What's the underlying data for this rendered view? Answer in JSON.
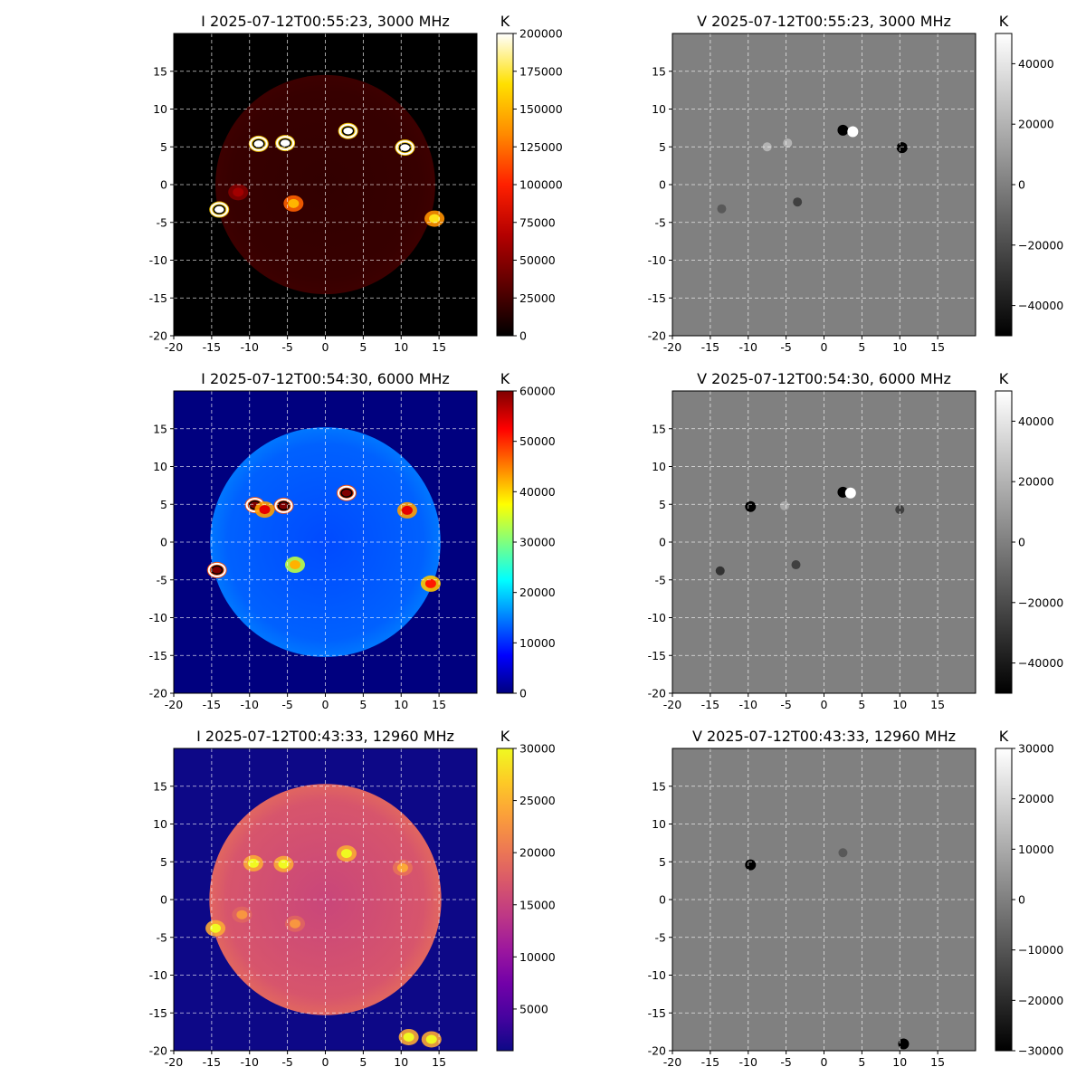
{
  "chart_data": [
    {
      "type": "heatmap",
      "stokes": "I",
      "title": "I 2025-07-12T00:55:23, 3000 MHz",
      "colormap": "hot",
      "xlim": [
        -20,
        20
      ],
      "ylim": [
        -20,
        20
      ],
      "xticks": [
        "-20",
        "-15",
        "-10",
        "-5",
        "0",
        "5",
        "10",
        "15"
      ],
      "yticks": [
        "-20",
        "-15",
        "-10",
        "-5",
        "0",
        "5",
        "10",
        "15"
      ],
      "grid": true,
      "colorbar": {
        "label": "K",
        "min": 0,
        "max": 200000,
        "ticks": [
          "0",
          "25000",
          "50000",
          "75000",
          "100000",
          "125000",
          "150000",
          "175000",
          "200000"
        ]
      },
      "disk": {
        "cx": 0,
        "cy": 0,
        "r": 14.5,
        "level": 0.1
      },
      "sources": [
        {
          "x": -8.8,
          "y": 5.4,
          "level": 1.0,
          "contours": true
        },
        {
          "x": -5.3,
          "y": 5.5,
          "level": 1.0,
          "contours": true
        },
        {
          "x": 3.0,
          "y": 7.1,
          "level": 1.0,
          "contours": true
        },
        {
          "x": 10.5,
          "y": 4.9,
          "level": 1.0,
          "contours": true
        },
        {
          "x": -14.0,
          "y": -3.3,
          "level": 1.0,
          "contours": true
        },
        {
          "x": -4.2,
          "y": -2.5,
          "level": 0.75
        },
        {
          "x": 14.4,
          "y": -4.5,
          "level": 0.85
        },
        {
          "x": -11.5,
          "y": -1.0,
          "level": 0.3
        }
      ]
    },
    {
      "type": "heatmap",
      "stokes": "V",
      "title": "V 2025-07-12T00:55:23, 3000 MHz",
      "colormap": "gray",
      "xlim": [
        -20,
        20
      ],
      "ylim": [
        -20,
        20
      ],
      "xticks": [
        "-20",
        "-15",
        "-10",
        "-5",
        "0",
        "5",
        "10",
        "15"
      ],
      "yticks": [
        "-20",
        "-15",
        "-10",
        "-5",
        "0",
        "5",
        "10",
        "15"
      ],
      "grid": true,
      "colorbar": {
        "label": "K",
        "min": -50000,
        "max": 50000,
        "ticks": [
          "−40000",
          "−20000",
          "0",
          "20000",
          "40000"
        ]
      },
      "sources": [
        {
          "x": 2.5,
          "y": 7.2,
          "sign": -1
        },
        {
          "x": 3.8,
          "y": 7.0,
          "sign": 1
        },
        {
          "x": 10.3,
          "y": 4.9,
          "sign": -1
        },
        {
          "x": -7.5,
          "y": 5.0,
          "sign": 0.4
        },
        {
          "x": -4.8,
          "y": 5.5,
          "sign": 0.4
        },
        {
          "x": -3.5,
          "y": -2.3,
          "sign": -0.5
        },
        {
          "x": -13.5,
          "y": -3.2,
          "sign": -0.3
        }
      ]
    },
    {
      "type": "heatmap",
      "stokes": "I",
      "title": "I 2025-07-12T00:54:30, 6000 MHz",
      "colormap": "jet",
      "xlim": [
        -20,
        20
      ],
      "ylim": [
        -20,
        20
      ],
      "xticks": [
        "-20",
        "-15",
        "-10",
        "-5",
        "0",
        "5",
        "10",
        "15"
      ],
      "yticks": [
        "-20",
        "-15",
        "-10",
        "-5",
        "0",
        "5",
        "10",
        "15"
      ],
      "grid": true,
      "colorbar": {
        "label": "K",
        "min": 0,
        "max": 60000,
        "ticks": [
          "0",
          "10000",
          "20000",
          "30000",
          "40000",
          "50000",
          "60000"
        ]
      },
      "disk": {
        "cx": 0,
        "cy": 0,
        "r": 15.2,
        "level": 0.22
      },
      "sources": [
        {
          "x": -9.3,
          "y": 4.9,
          "level": 1.0,
          "contours": true
        },
        {
          "x": -8.0,
          "y": 4.3,
          "level": 0.9
        },
        {
          "x": -5.5,
          "y": 4.8,
          "level": 1.0,
          "contours": true
        },
        {
          "x": 2.8,
          "y": 6.5,
          "level": 1.0,
          "contours": true
        },
        {
          "x": 10.8,
          "y": 4.2,
          "level": 0.9
        },
        {
          "x": -14.3,
          "y": -3.7,
          "level": 1.0,
          "contours": true
        },
        {
          "x": -4.0,
          "y": -3.0,
          "level": 0.7
        },
        {
          "x": 13.9,
          "y": -5.5,
          "level": 0.85
        }
      ]
    },
    {
      "type": "heatmap",
      "stokes": "V",
      "title": "V 2025-07-12T00:54:30, 6000 MHz",
      "colormap": "gray",
      "xlim": [
        -20,
        20
      ],
      "ylim": [
        -20,
        20
      ],
      "xticks": [
        "-20",
        "-15",
        "-10",
        "-5",
        "0",
        "5",
        "10",
        "15"
      ],
      "yticks": [
        "-20",
        "-15",
        "-10",
        "-5",
        "0",
        "5",
        "10",
        "15"
      ],
      "grid": true,
      "colorbar": {
        "label": "K",
        "min": -50000,
        "max": 50000,
        "ticks": [
          "−40000",
          "−20000",
          "0",
          "20000",
          "40000"
        ]
      },
      "sources": [
        {
          "x": -9.7,
          "y": 4.7,
          "sign": -1
        },
        {
          "x": 2.5,
          "y": 6.6,
          "sign": -1
        },
        {
          "x": 3.5,
          "y": 6.5,
          "sign": 1
        },
        {
          "x": 10.0,
          "y": 4.3,
          "sign": -0.5
        },
        {
          "x": -13.7,
          "y": -3.8,
          "sign": -0.6
        },
        {
          "x": -3.7,
          "y": -3.0,
          "sign": -0.5
        },
        {
          "x": -5.2,
          "y": 4.8,
          "sign": 0.3
        }
      ]
    },
    {
      "type": "heatmap",
      "stokes": "I",
      "title": "I 2025-07-12T00:43:33, 12960 MHz",
      "colormap": "plasma",
      "xlim": [
        -20,
        20
      ],
      "ylim": [
        -20,
        20
      ],
      "xticks": [
        "-20",
        "-15",
        "-10",
        "-5",
        "0",
        "5",
        "10",
        "15"
      ],
      "yticks": [
        "-20",
        "-15",
        "-10",
        "-5",
        "0",
        "5",
        "10",
        "15"
      ],
      "grid": true,
      "colorbar": {
        "label": "K",
        "min": 1000,
        "max": 30000,
        "ticks": [
          "5000",
          "10000",
          "15000",
          "20000",
          "25000",
          "30000"
        ]
      },
      "disk": {
        "cx": 0,
        "cy": 0,
        "r": 15.3,
        "level": 0.55
      },
      "sources": [
        {
          "x": -9.5,
          "y": 4.8,
          "level": 1.0
        },
        {
          "x": -5.5,
          "y": 4.7,
          "level": 1.0
        },
        {
          "x": 2.8,
          "y": 6.1,
          "level": 1.0
        },
        {
          "x": 10.2,
          "y": 4.2,
          "level": 0.8
        },
        {
          "x": -14.5,
          "y": -3.8,
          "level": 1.0
        },
        {
          "x": -4.0,
          "y": -3.2,
          "level": 0.75
        },
        {
          "x": 14.0,
          "y": -18.5,
          "level": 1.0
        },
        {
          "x": 11.0,
          "y": -18.2,
          "level": 1.0
        },
        {
          "x": -11.0,
          "y": -2.0,
          "level": 0.75
        }
      ]
    },
    {
      "type": "heatmap",
      "stokes": "V",
      "title": "V 2025-07-12T00:43:33, 12960 MHz",
      "colormap": "gray",
      "xlim": [
        -20,
        20
      ],
      "ylim": [
        -20,
        20
      ],
      "xticks": [
        "-20",
        "-15",
        "-10",
        "-5",
        "0",
        "5",
        "10",
        "15"
      ],
      "yticks": [
        "-20",
        "-15",
        "-10",
        "-5",
        "0",
        "5",
        "10",
        "15"
      ],
      "grid": true,
      "colorbar": {
        "label": "K",
        "min": -30000,
        "max": 30000,
        "ticks": [
          "−30000",
          "−20000",
          "−10000",
          "0",
          "10000",
          "20000",
          "30000"
        ]
      },
      "sources": [
        {
          "x": -9.7,
          "y": 4.6,
          "sign": -1
        },
        {
          "x": 2.5,
          "y": 6.2,
          "sign": -0.3
        },
        {
          "x": 10.5,
          "y": -19.1,
          "sign": -1
        }
      ]
    }
  ]
}
